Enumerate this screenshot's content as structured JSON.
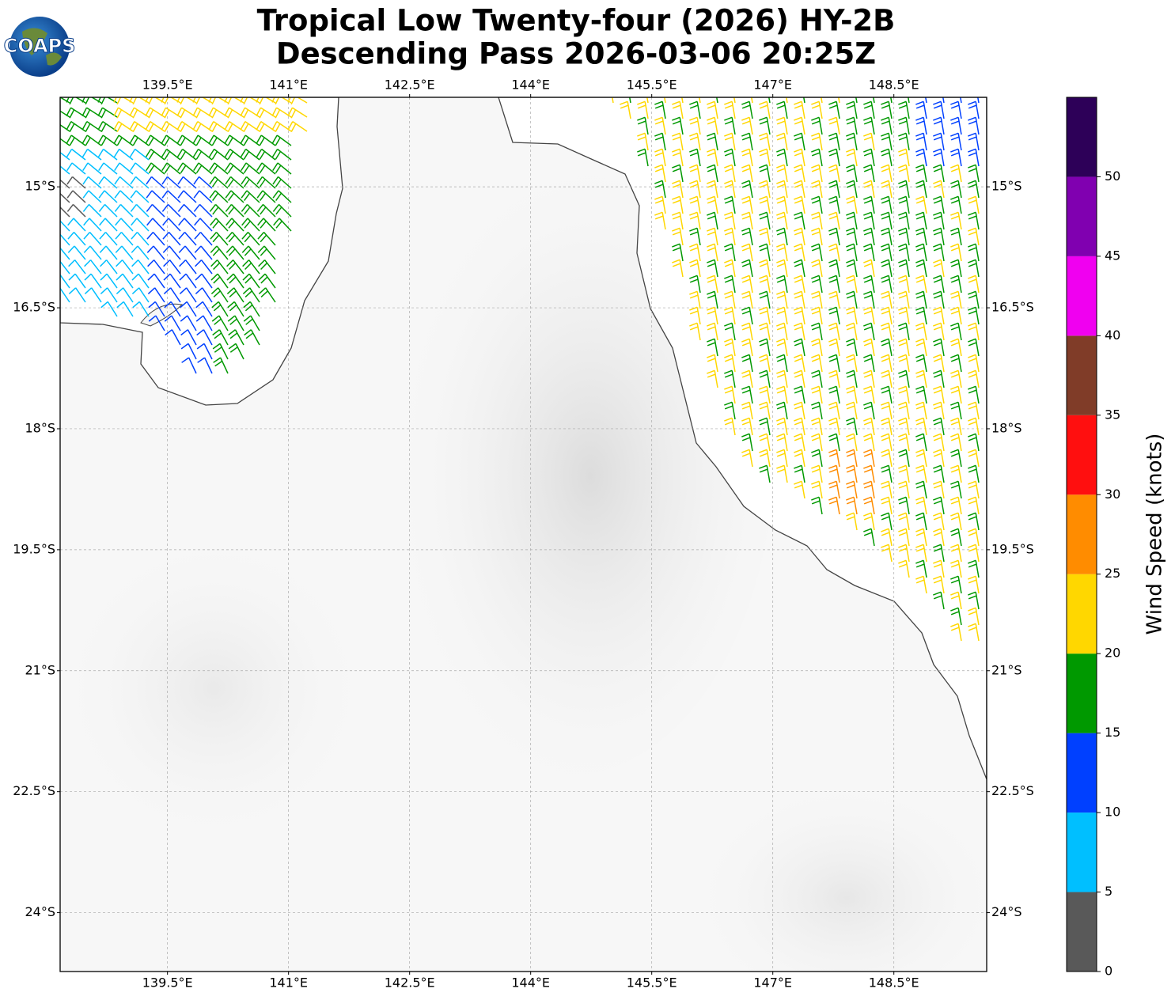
{
  "header": {
    "title": "Tropical Low Twenty-four (2026) HY-2B",
    "subtitle": "Descending Pass 2026-03-06 20:25Z",
    "logo": "COAPS"
  },
  "map": {
    "xlim": [
      138.17,
      149.65
    ],
    "ylim": [
      -24.73,
      -13.89
    ],
    "grid": true,
    "xticks": [
      {
        "value": 139.5,
        "label": "139.5°E"
      },
      {
        "value": 141,
        "label": "141°E"
      },
      {
        "value": 142.5,
        "label": "142.5°E"
      },
      {
        "value": 144,
        "label": "144°E"
      },
      {
        "value": 145.5,
        "label": "145.5°E"
      },
      {
        "value": 147,
        "label": "147°E"
      },
      {
        "value": 148.5,
        "label": "148.5°E"
      }
    ],
    "yticks": [
      {
        "value": -15,
        "label": "15°S"
      },
      {
        "value": -16.5,
        "label": "16.5°S"
      },
      {
        "value": -18,
        "label": "18°S"
      },
      {
        "value": -19.5,
        "label": "19.5°S"
      },
      {
        "value": -21,
        "label": "21°S"
      },
      {
        "value": -22.5,
        "label": "22.5°S"
      },
      {
        "value": -24,
        "label": "24°S"
      }
    ]
  },
  "colorbar": {
    "label": "Wind Speed (knots)",
    "lim": [
      0,
      55
    ],
    "ticks": [
      0,
      5,
      10,
      15,
      20,
      25,
      30,
      35,
      40,
      45,
      50
    ],
    "bounds": [
      0,
      5,
      10,
      15,
      20,
      25,
      30,
      35,
      40,
      45,
      50,
      55
    ],
    "colors": [
      "#595959",
      "#00bfff",
      "#0040ff",
      "#009900",
      "#ffd700",
      "#ff8c00",
      "#ff0f0f",
      "#803c28",
      "#f000f0",
      "#8000b0",
      "#2d0058"
    ]
  }
}
